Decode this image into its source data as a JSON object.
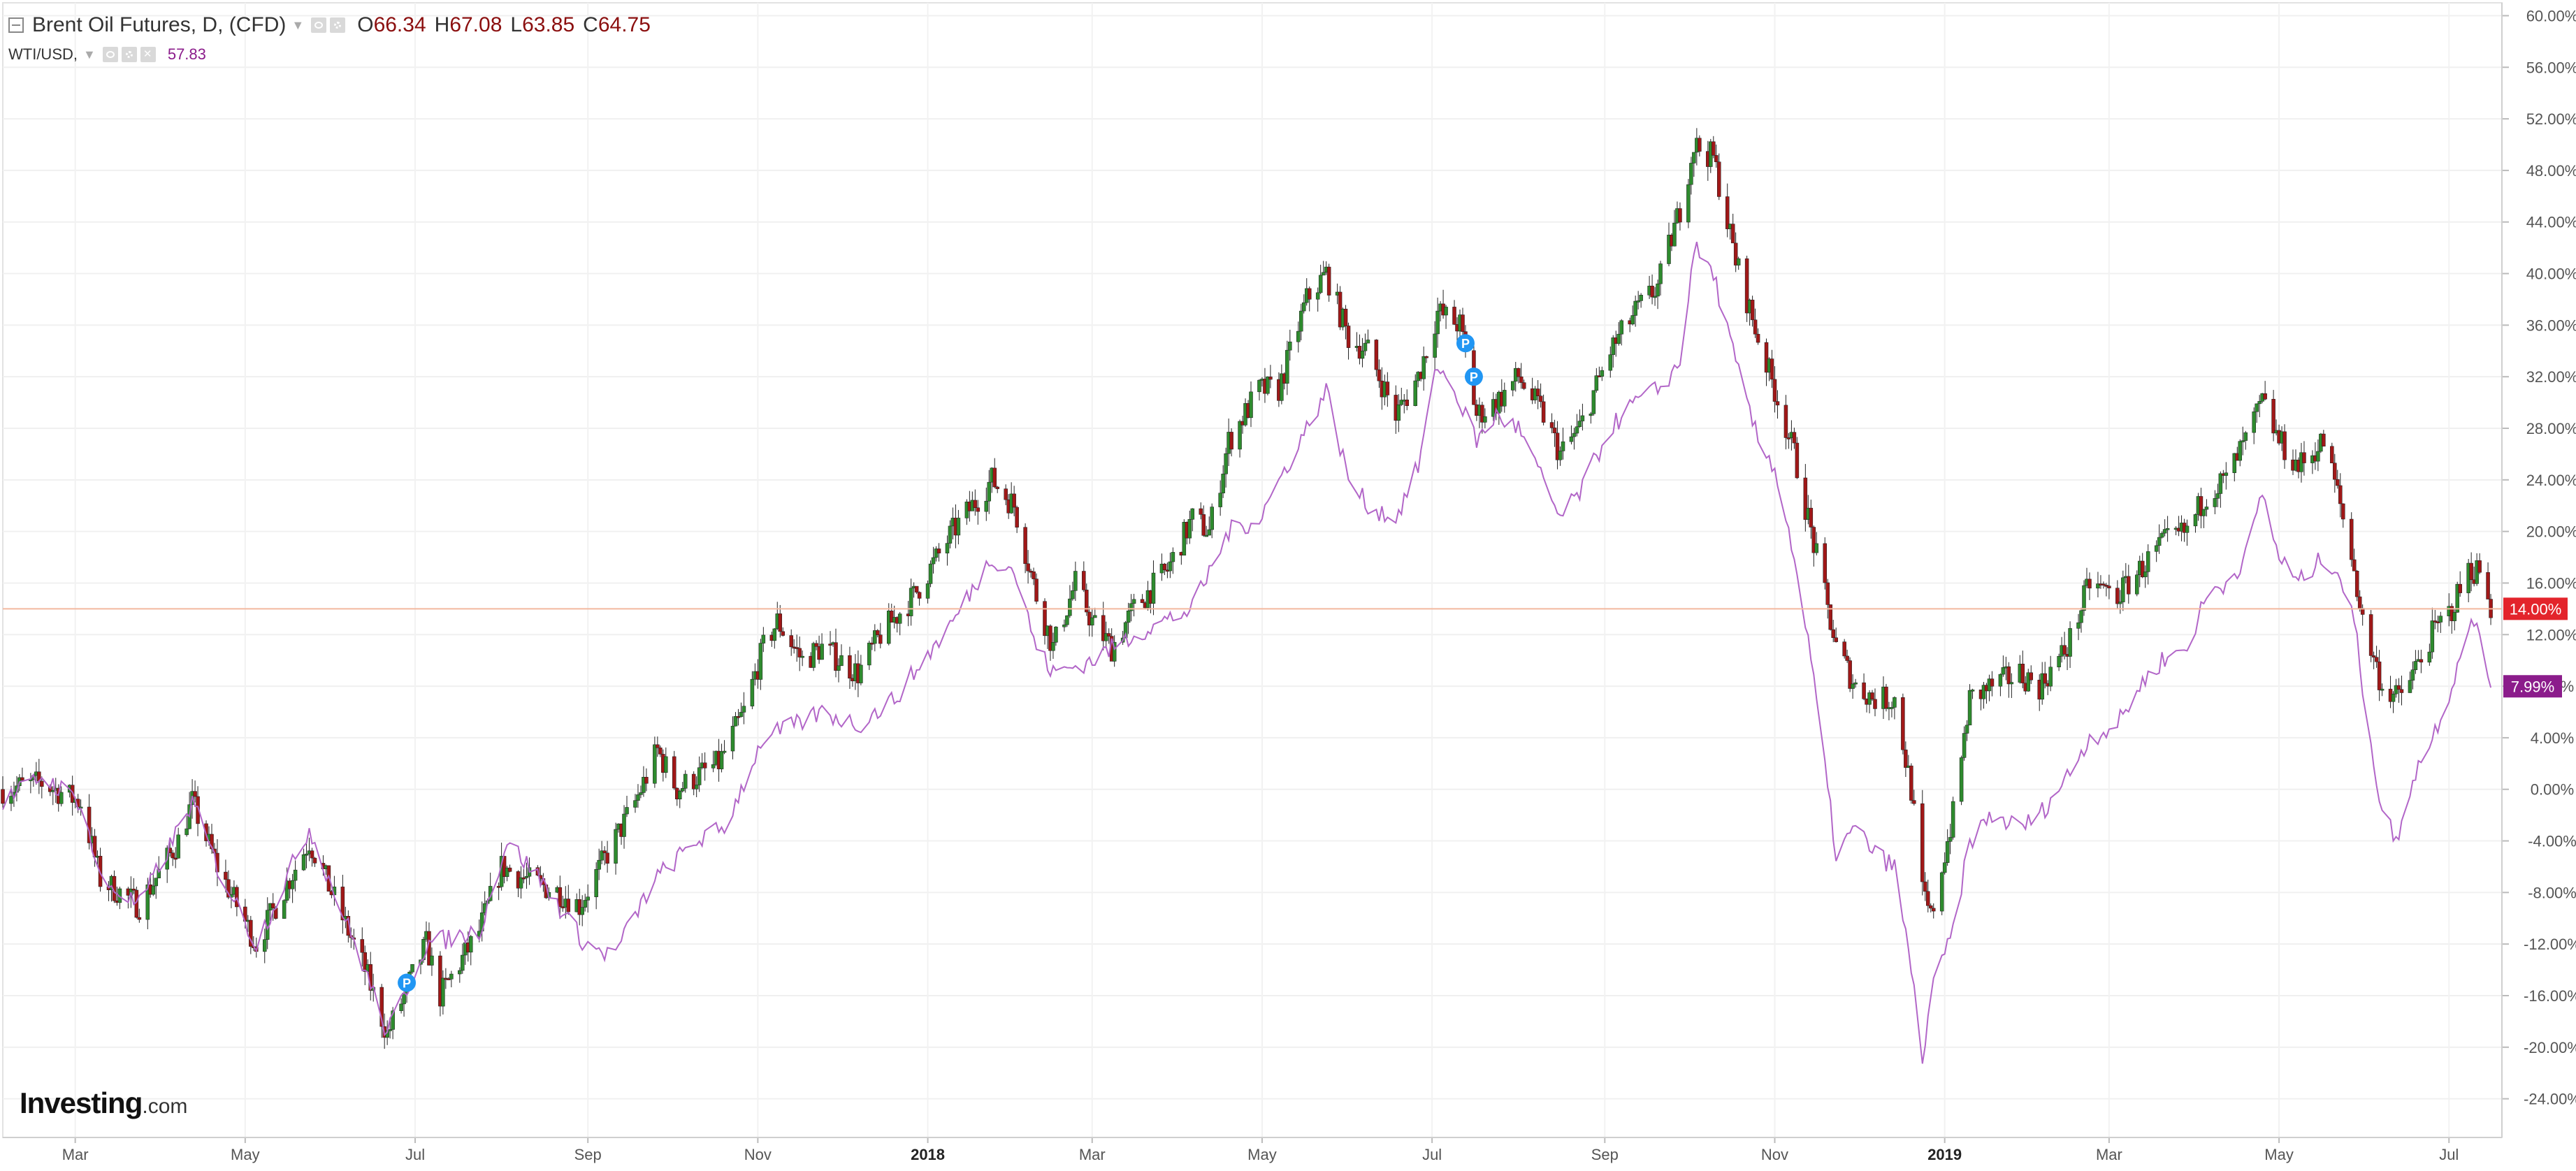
{
  "legend": {
    "main_title": "Brent Oil Futures, D, (CFD)",
    "ohlc": [
      {
        "key": "O",
        "value": "66.34"
      },
      {
        "key": "H",
        "value": "67.08"
      },
      {
        "key": "L",
        "value": "63.85"
      },
      {
        "key": "C",
        "value": "64.75"
      }
    ],
    "compare_title": "WTI/USD,",
    "compare_value": "57.83"
  },
  "logo": {
    "text": "Investing",
    "suffix": ".com"
  },
  "colors": {
    "up_candle": "#2e8b2e",
    "down_candle": "#a01818",
    "compare_line": "#b266c8",
    "last_price_badge": "#e3242b",
    "compare_badge": "#8b1c8b",
    "price_line": "#f3b89f",
    "event_marker": "#2196f3"
  },
  "chart_data": {
    "type": "line",
    "title": "Brent Oil Futures, D, (CFD)",
    "xlabel": "",
    "ylabel": "",
    "y_unit": "%",
    "ylim": [
      -27,
      61
    ],
    "xlim": [
      "2017-02-03",
      "2019-07-20"
    ],
    "grid": true,
    "y_ticks": [
      "60.00%",
      "56.00%",
      "52.00%",
      "48.00%",
      "44.00%",
      "40.00%",
      "36.00%",
      "32.00%",
      "28.00%",
      "24.00%",
      "20.00%",
      "16.00%",
      "12.00%",
      "8.00%",
      "4.00%",
      "0.00%",
      "-4.00%",
      "-8.00%",
      "-12.00%",
      "-16.00%",
      "-20.00%",
      "-24.00%"
    ],
    "x_ticks": [
      {
        "label": "Mar",
        "date": "2017-03-01",
        "bold": false
      },
      {
        "label": "May",
        "date": "2017-05-01",
        "bold": false
      },
      {
        "label": "Jul",
        "date": "2017-07-01",
        "bold": false
      },
      {
        "label": "Sep",
        "date": "2017-09-01",
        "bold": false
      },
      {
        "label": "Nov",
        "date": "2017-11-01",
        "bold": false
      },
      {
        "label": "2018",
        "date": "2018-01-01",
        "bold": true
      },
      {
        "label": "Mar",
        "date": "2018-03-01",
        "bold": false
      },
      {
        "label": "May",
        "date": "2018-05-01",
        "bold": false
      },
      {
        "label": "Jul",
        "date": "2018-07-01",
        "bold": false
      },
      {
        "label": "Sep",
        "date": "2018-09-01",
        "bold": false
      },
      {
        "label": "Nov",
        "date": "2018-11-01",
        "bold": false
      },
      {
        "label": "2019",
        "date": "2019-01-01",
        "bold": true
      },
      {
        "label": "Mar",
        "date": "2019-03-01",
        "bold": false
      },
      {
        "label": "May",
        "date": "2019-05-01",
        "bold": false
      },
      {
        "label": "Jul",
        "date": "2019-07-01",
        "bold": false
      }
    ],
    "series": [
      {
        "name": "Brent Oil Futures, D, (CFD)",
        "style": "candlestick",
        "last_label": "14.00%",
        "last_value": 14.0,
        "points": [
          [
            "2017-02-03",
            0
          ],
          [
            "2017-02-17",
            0.5
          ],
          [
            "2017-03-03",
            -1
          ],
          [
            "2017-03-10",
            -7
          ],
          [
            "2017-03-24",
            -9
          ],
          [
            "2017-04-07",
            -4
          ],
          [
            "2017-04-12",
            -1
          ],
          [
            "2017-04-21",
            -6
          ],
          [
            "2017-05-05",
            -12
          ],
          [
            "2017-05-12",
            -9
          ],
          [
            "2017-05-24",
            -4
          ],
          [
            "2017-06-05",
            -10
          ],
          [
            "2017-06-13",
            -14
          ],
          [
            "2017-06-21",
            -19
          ],
          [
            "2017-06-27",
            -16
          ],
          [
            "2017-07-05",
            -12
          ],
          [
            "2017-07-10",
            -16
          ],
          [
            "2017-07-24",
            -11
          ],
          [
            "2017-08-01",
            -6
          ],
          [
            "2017-08-10",
            -7
          ],
          [
            "2017-08-22",
            -8
          ],
          [
            "2017-08-29",
            -9
          ],
          [
            "2017-09-08",
            -5
          ],
          [
            "2017-09-18",
            -1
          ],
          [
            "2017-09-26",
            3
          ],
          [
            "2017-10-03",
            0
          ],
          [
            "2017-10-10",
            1
          ],
          [
            "2017-10-18",
            2
          ],
          [
            "2017-10-27",
            6
          ],
          [
            "2017-11-03",
            11
          ],
          [
            "2017-11-08",
            13
          ],
          [
            "2017-11-17",
            10
          ],
          [
            "2017-11-24",
            11
          ],
          [
            "2017-12-07",
            9
          ],
          [
            "2017-12-15",
            12
          ],
          [
            "2017-12-27",
            15
          ],
          [
            "2018-01-10",
            20
          ],
          [
            "2018-01-24",
            24
          ],
          [
            "2018-02-01",
            22
          ],
          [
            "2018-02-09",
            15
          ],
          [
            "2018-02-15",
            11
          ],
          [
            "2018-02-23",
            16
          ],
          [
            "2018-03-01",
            13
          ],
          [
            "2018-03-08",
            11
          ],
          [
            "2018-03-16",
            14
          ],
          [
            "2018-03-28",
            17
          ],
          [
            "2018-04-06",
            21
          ],
          [
            "2018-04-12",
            20
          ],
          [
            "2018-04-19",
            27
          ],
          [
            "2018-04-30",
            31
          ],
          [
            "2018-05-07",
            31
          ],
          [
            "2018-05-17",
            38
          ],
          [
            "2018-05-24",
            40
          ],
          [
            "2018-06-01",
            35
          ],
          [
            "2018-06-08",
            34
          ],
          [
            "2018-06-18",
            29
          ],
          [
            "2018-06-26",
            32
          ],
          [
            "2018-07-03",
            37
          ],
          [
            "2018-07-11",
            36
          ],
          [
            "2018-07-17",
            29
          ],
          [
            "2018-07-24",
            30
          ],
          [
            "2018-08-01",
            32
          ],
          [
            "2018-08-10",
            29
          ],
          [
            "2018-08-16",
            26
          ],
          [
            "2018-08-23",
            28
          ],
          [
            "2018-09-03",
            34
          ],
          [
            "2018-09-12",
            37
          ],
          [
            "2018-09-20",
            39
          ],
          [
            "2018-09-28",
            45
          ],
          [
            "2018-10-03",
            50
          ],
          [
            "2018-10-10",
            49
          ],
          [
            "2018-10-18",
            41
          ],
          [
            "2018-10-26",
            35
          ],
          [
            "2018-11-01",
            31
          ],
          [
            "2018-11-08",
            26
          ],
          [
            "2018-11-14",
            20
          ],
          [
            "2018-11-23",
            11
          ],
          [
            "2018-11-30",
            8
          ],
          [
            "2018-12-07",
            7
          ],
          [
            "2018-12-14",
            7
          ],
          [
            "2018-12-20",
            0
          ],
          [
            "2018-12-24",
            -8
          ],
          [
            "2018-12-27",
            -10
          ],
          [
            "2019-01-04",
            -2
          ],
          [
            "2019-01-10",
            7
          ],
          [
            "2019-01-18",
            8
          ],
          [
            "2019-01-28",
            9
          ],
          [
            "2019-02-04",
            8
          ],
          [
            "2019-02-14",
            11
          ],
          [
            "2019-02-22",
            16
          ],
          [
            "2019-03-04",
            15
          ],
          [
            "2019-03-12",
            17
          ],
          [
            "2019-03-20",
            19
          ],
          [
            "2019-03-29",
            20
          ],
          [
            "2019-04-05",
            23
          ],
          [
            "2019-04-12",
            24
          ],
          [
            "2019-04-19",
            27
          ],
          [
            "2019-04-25",
            30
          ],
          [
            "2019-05-01",
            27
          ],
          [
            "2019-05-08",
            25
          ],
          [
            "2019-05-17",
            27
          ],
          [
            "2019-05-22",
            23
          ],
          [
            "2019-05-28",
            17
          ],
          [
            "2019-05-31",
            13
          ],
          [
            "2019-06-07",
            8
          ],
          [
            "2019-06-13",
            7
          ],
          [
            "2019-06-18",
            9
          ],
          [
            "2019-06-25",
            12
          ],
          [
            "2019-07-02",
            14
          ],
          [
            "2019-07-08",
            17
          ],
          [
            "2019-07-12",
            17
          ],
          [
            "2019-07-16",
            14
          ]
        ]
      },
      {
        "name": "WTI/USD,",
        "style": "line",
        "last_label": "7.99%",
        "last_value": 7.99,
        "points": [
          [
            "2017-02-03",
            -1
          ],
          [
            "2017-02-17",
            1
          ],
          [
            "2017-03-03",
            -1
          ],
          [
            "2017-03-10",
            -7
          ],
          [
            "2017-03-24",
            -9
          ],
          [
            "2017-04-12",
            -1
          ],
          [
            "2017-04-21",
            -6
          ],
          [
            "2017-05-05",
            -12
          ],
          [
            "2017-05-24",
            -3
          ],
          [
            "2017-06-13",
            -14
          ],
          [
            "2017-06-21",
            -19
          ],
          [
            "2017-07-05",
            -12
          ],
          [
            "2017-07-24",
            -11
          ],
          [
            "2017-08-03",
            -4
          ],
          [
            "2017-08-15",
            -7
          ],
          [
            "2017-08-31",
            -12
          ],
          [
            "2017-09-10",
            -13
          ],
          [
            "2017-09-25",
            -7
          ],
          [
            "2017-10-10",
            -4
          ],
          [
            "2017-10-20",
            -3
          ],
          [
            "2017-11-03",
            4
          ],
          [
            "2017-11-15",
            5
          ],
          [
            "2017-11-24",
            6
          ],
          [
            "2017-12-07",
            5
          ],
          [
            "2017-12-20",
            7
          ],
          [
            "2018-01-10",
            13
          ],
          [
            "2018-01-24",
            18
          ],
          [
            "2018-02-01",
            17
          ],
          [
            "2018-02-09",
            11
          ],
          [
            "2018-02-15",
            9
          ],
          [
            "2018-03-01",
            10
          ],
          [
            "2018-03-16",
            12
          ],
          [
            "2018-04-06",
            14
          ],
          [
            "2018-04-19",
            20
          ],
          [
            "2018-04-30",
            21
          ],
          [
            "2018-05-17",
            28
          ],
          [
            "2018-05-24",
            31
          ],
          [
            "2018-06-01",
            24
          ],
          [
            "2018-06-08",
            22
          ],
          [
            "2018-06-18",
            21
          ],
          [
            "2018-06-26",
            25
          ],
          [
            "2018-07-03",
            33
          ],
          [
            "2018-07-11",
            30
          ],
          [
            "2018-07-17",
            27
          ],
          [
            "2018-07-24",
            29
          ],
          [
            "2018-08-01",
            28
          ],
          [
            "2018-08-16",
            21
          ],
          [
            "2018-08-23",
            23
          ],
          [
            "2018-09-03",
            28
          ],
          [
            "2018-09-12",
            30
          ],
          [
            "2018-09-20",
            31
          ],
          [
            "2018-09-28",
            33
          ],
          [
            "2018-10-03",
            42
          ],
          [
            "2018-10-10",
            40
          ],
          [
            "2018-10-18",
            33
          ],
          [
            "2018-10-26",
            27
          ],
          [
            "2018-11-01",
            25
          ],
          [
            "2018-11-08",
            18
          ],
          [
            "2018-11-14",
            10
          ],
          [
            "2018-11-23",
            -5
          ],
          [
            "2018-11-30",
            -3
          ],
          [
            "2018-12-07",
            -5
          ],
          [
            "2018-12-14",
            -6
          ],
          [
            "2018-12-20",
            -14
          ],
          [
            "2018-12-24",
            -21
          ],
          [
            "2018-12-27",
            -16
          ],
          [
            "2019-01-04",
            -11
          ],
          [
            "2019-01-10",
            -4
          ],
          [
            "2019-01-18",
            -2
          ],
          [
            "2019-01-28",
            -3
          ],
          [
            "2019-02-04",
            -2
          ],
          [
            "2019-02-14",
            1
          ],
          [
            "2019-02-22",
            4
          ],
          [
            "2019-03-04",
            5
          ],
          [
            "2019-03-12",
            8
          ],
          [
            "2019-03-20",
            10
          ],
          [
            "2019-03-29",
            11
          ],
          [
            "2019-04-05",
            15
          ],
          [
            "2019-04-12",
            16
          ],
          [
            "2019-04-19",
            18
          ],
          [
            "2019-04-25",
            23
          ],
          [
            "2019-05-01",
            18
          ],
          [
            "2019-05-08",
            16
          ],
          [
            "2019-05-17",
            18
          ],
          [
            "2019-05-22",
            17
          ],
          [
            "2019-05-28",
            13
          ],
          [
            "2019-05-31",
            8
          ],
          [
            "2019-06-07",
            -2
          ],
          [
            "2019-06-13",
            -4
          ],
          [
            "2019-06-18",
            1
          ],
          [
            "2019-06-25",
            4
          ],
          [
            "2019-07-02",
            8
          ],
          [
            "2019-07-08",
            13
          ],
          [
            "2019-07-12",
            12
          ],
          [
            "2019-07-16",
            8
          ]
        ]
      }
    ],
    "markers": [
      {
        "label": "P",
        "date": "2017-06-28",
        "y": -15
      },
      {
        "label": "P",
        "date": "2018-07-13",
        "y": 34.6
      },
      {
        "label": "P",
        "date": "2018-07-16",
        "y": 32
      }
    ]
  }
}
